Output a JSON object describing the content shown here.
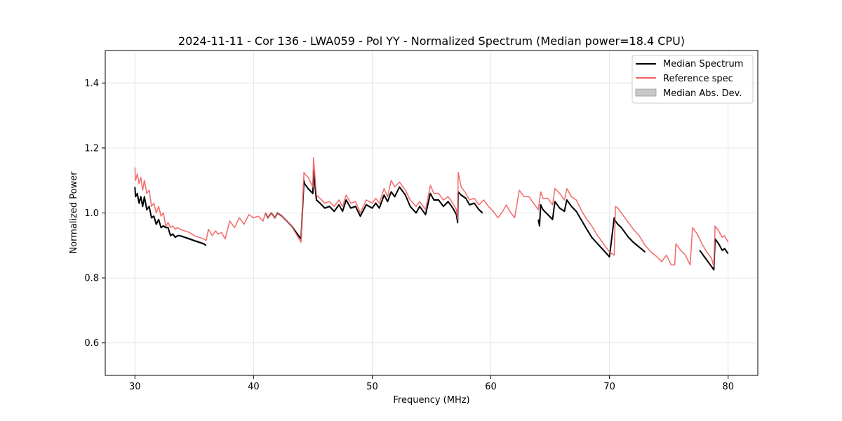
{
  "chart_data": {
    "type": "line",
    "title": "2024-11-11 - Cor 136 - LWA059 - Pol YY - Normalized Spectrum (Median power=18.4 CPU)",
    "xlabel": "Frequency (MHz)",
    "ylabel": "Normalized Power",
    "xlim": [
      27.5,
      82.5
    ],
    "ylim": [
      0.5,
      1.5
    ],
    "xticks": [
      30,
      40,
      50,
      60,
      70,
      80
    ],
    "yticks": [
      0.6,
      0.8,
      1.0,
      1.2,
      1.4
    ],
    "xtick_labels": [
      "30",
      "40",
      "50",
      "60",
      "70",
      "80"
    ],
    "ytick_labels": [
      "0.6",
      "0.8",
      "1.0",
      "1.2",
      "1.4"
    ],
    "grid": true,
    "legend_position": "top-right",
    "legend": [
      {
        "label": "Median Spectrum",
        "color": "#000000",
        "kind": "line"
      },
      {
        "label": "Reference spec",
        "color": "#f36060",
        "kind": "line"
      },
      {
        "label": "Median Abs. Dev.",
        "color": "#c8c8c8",
        "kind": "patch"
      }
    ],
    "series": [
      {
        "name": "Reference spec",
        "color": "#f36060",
        "x": [
          30.0,
          30.05,
          30.2,
          30.35,
          30.5,
          30.65,
          30.8,
          31.0,
          31.2,
          31.4,
          31.6,
          31.8,
          32.0,
          32.2,
          32.4,
          32.6,
          32.8,
          33.0,
          33.2,
          33.4,
          33.6,
          33.8,
          34.2,
          34.6,
          35.0,
          35.4,
          35.8,
          36.0,
          36.2,
          36.5,
          36.8,
          37.0,
          37.3,
          37.6,
          38.0,
          38.4,
          38.8,
          39.2,
          39.6,
          40.0,
          40.4,
          40.8,
          41.0,
          41.2,
          41.5,
          41.8,
          42.0,
          42.4,
          42.8,
          43.2,
          43.6,
          44.0,
          44.25,
          44.3,
          44.6,
          45.0,
          45.05,
          45.3,
          45.6,
          46.0,
          46.4,
          46.8,
          47.2,
          47.5,
          47.8,
          48.2,
          48.6,
          49.0,
          49.5,
          50.0,
          50.3,
          50.6,
          51.0,
          51.3,
          51.6,
          51.9,
          52.3,
          52.8,
          53.2,
          53.7,
          54.0,
          54.5,
          54.9,
          55.2,
          55.6,
          56.0,
          56.4,
          56.8,
          57.1,
          57.2,
          57.25,
          57.5,
          57.9,
          58.2,
          58.6,
          59.0,
          59.4,
          59.8,
          60.2,
          60.6,
          61.0,
          61.3,
          61.6,
          62.0,
          62.4,
          62.8,
          63.2,
          63.6,
          64.0,
          64.2,
          64.4,
          64.8,
          65.2,
          65.4,
          65.8,
          66.2,
          66.4,
          66.8,
          67.2,
          67.6,
          68.0,
          68.5,
          69.0,
          69.5,
          70.0,
          70.4,
          70.5,
          70.7,
          71.0,
          71.3,
          71.6,
          72.0,
          72.5,
          73.0,
          73.5,
          74.0,
          74.4,
          74.8,
          75.2,
          75.5,
          75.6,
          76.0,
          76.4,
          76.8,
          77.0,
          77.4,
          77.8,
          78.2,
          78.6,
          78.8,
          78.9,
          79.2,
          79.5,
          79.7,
          80.0
        ],
        "values": [
          1.14,
          1.1,
          1.12,
          1.09,
          1.11,
          1.07,
          1.1,
          1.06,
          1.07,
          1.02,
          1.03,
          1.0,
          1.02,
          0.99,
          1.0,
          0.96,
          0.97,
          0.955,
          0.96,
          0.95,
          0.955,
          0.95,
          0.945,
          0.94,
          0.93,
          0.925,
          0.92,
          0.915,
          0.95,
          0.93,
          0.945,
          0.935,
          0.94,
          0.92,
          0.975,
          0.955,
          0.985,
          0.965,
          0.995,
          0.985,
          0.99,
          0.975,
          1.0,
          0.985,
          1.0,
          0.985,
          1.0,
          0.99,
          0.975,
          0.96,
          0.935,
          0.91,
          1.125,
          1.12,
          1.11,
          1.08,
          1.17,
          1.055,
          1.045,
          1.03,
          1.035,
          1.02,
          1.04,
          1.02,
          1.055,
          1.03,
          1.035,
          1.0,
          1.04,
          1.03,
          1.045,
          1.03,
          1.075,
          1.05,
          1.1,
          1.08,
          1.095,
          1.07,
          1.04,
          1.02,
          1.035,
          1.01,
          1.085,
          1.06,
          1.06,
          1.04,
          1.05,
          1.03,
          1.01,
          0.98,
          1.125,
          1.08,
          1.06,
          1.04,
          1.045,
          1.025,
          1.04,
          1.02,
          1.005,
          0.985,
          1.005,
          1.025,
          1.005,
          0.985,
          1.07,
          1.05,
          1.05,
          1.03,
          1.01,
          1.065,
          1.045,
          1.045,
          1.025,
          1.075,
          1.06,
          1.04,
          1.075,
          1.05,
          1.04,
          1.01,
          0.985,
          0.96,
          0.93,
          0.905,
          0.88,
          0.87,
          1.02,
          1.015,
          1.0,
          0.985,
          0.97,
          0.95,
          0.93,
          0.9,
          0.88,
          0.865,
          0.85,
          0.87,
          0.84,
          0.84,
          0.905,
          0.885,
          0.87,
          0.84,
          0.955,
          0.935,
          0.905,
          0.88,
          0.86,
          0.835,
          0.96,
          0.945,
          0.925,
          0.93,
          0.91
        ]
      },
      {
        "name": "Median Spectrum",
        "color": "#000000",
        "segments": [
          {
            "x": [
              30.0,
              30.05,
              30.2,
              30.35,
              30.5,
              30.65,
              30.8,
              31.0,
              31.2,
              31.4,
              31.6,
              31.8,
              32.0,
              32.2,
              32.4,
              32.6,
              32.8,
              33.0,
              33.2,
              33.4,
              33.6,
              33.8,
              34.2,
              34.6,
              35.0,
              35.4,
              35.8,
              36.0
            ],
            "values": [
              1.08,
              1.05,
              1.06,
              1.03,
              1.05,
              1.02,
              1.05,
              1.01,
              1.02,
              0.985,
              0.99,
              0.965,
              0.98,
              0.955,
              0.96,
              0.955,
              0.955,
              0.93,
              0.935,
              0.925,
              0.93,
              0.93,
              0.925,
              0.92,
              0.915,
              0.91,
              0.905,
              0.9
            ]
          },
          {
            "x": [
              41.0,
              41.2,
              41.5,
              41.8,
              42.0,
              42.4,
              42.8,
              43.2,
              43.6,
              44.0,
              44.25,
              44.3,
              44.6,
              45.0,
              45.05,
              45.3,
              45.6,
              46.0,
              46.4,
              46.8,
              47.2,
              47.5,
              47.8,
              48.2,
              48.6,
              49.0,
              49.5,
              50.0,
              50.3,
              50.6,
              51.0,
              51.3,
              51.6,
              51.9,
              52.3,
              52.8,
              53.2,
              53.7,
              54.0,
              54.5,
              54.9,
              55.2,
              55.6,
              56.0,
              56.4,
              56.8,
              57.1,
              57.2,
              57.25,
              57.5,
              57.9,
              58.2,
              58.6,
              59.0,
              59.3
            ],
            "values": [
              1.0,
              0.985,
              1.0,
              0.985,
              1.0,
              0.99,
              0.975,
              0.96,
              0.94,
              0.92,
              1.1,
              1.09,
              1.075,
              1.06,
              1.13,
              1.04,
              1.03,
              1.015,
              1.02,
              1.005,
              1.025,
              1.005,
              1.04,
              1.015,
              1.02,
              0.99,
              1.025,
              1.015,
              1.03,
              1.015,
              1.055,
              1.035,
              1.065,
              1.05,
              1.08,
              1.055,
              1.02,
              1.0,
              1.02,
              0.995,
              1.06,
              1.04,
              1.04,
              1.02,
              1.035,
              1.015,
              0.995,
              0.97,
              1.065,
              1.055,
              1.045,
              1.025,
              1.03,
              1.01,
              1.0
            ]
          },
          {
            "x": [
              64.0,
              64.1,
              64.2,
              64.4,
              64.8,
              65.2,
              65.4,
              65.8,
              66.2,
              66.4,
              66.8,
              67.2,
              67.6,
              68.0,
              68.5,
              69.0,
              69.5,
              70.0,
              70.4,
              70.5,
              70.7,
              71.0,
              71.3,
              71.6,
              72.0,
              72.5,
              73.0
            ],
            "values": [
              0.98,
              0.96,
              1.025,
              1.01,
              0.995,
              0.98,
              1.035,
              1.015,
              1.005,
              1.04,
              1.02,
              1.005,
              0.98,
              0.955,
              0.925,
              0.905,
              0.885,
              0.865,
              0.985,
              0.975,
              0.965,
              0.955,
              0.94,
              0.925,
              0.91,
              0.895,
              0.88
            ]
          },
          {
            "x": [
              77.6,
              78.0,
              78.4,
              78.8,
              78.9,
              79.2,
              79.5,
              79.7,
              80.0
            ],
            "values": [
              0.885,
              0.865,
              0.845,
              0.825,
              0.92,
              0.905,
              0.885,
              0.89,
              0.875
            ]
          }
        ]
      }
    ]
  }
}
